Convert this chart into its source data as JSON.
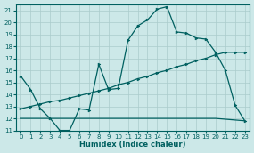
{
  "xlabel": "Humidex (Indice chaleur)",
  "background_color": "#cce8e8",
  "grid_color": "#aacccc",
  "line_color": "#006060",
  "xlim": [
    -0.5,
    23.5
  ],
  "ylim": [
    11,
    21.5
  ],
  "xticks": [
    0,
    1,
    2,
    3,
    4,
    5,
    6,
    7,
    8,
    9,
    10,
    11,
    12,
    13,
    14,
    15,
    16,
    17,
    18,
    19,
    20,
    21,
    22,
    23
  ],
  "yticks": [
    11,
    12,
    13,
    14,
    15,
    16,
    17,
    18,
    19,
    20,
    21
  ],
  "line1_x": [
    0,
    1,
    2,
    3,
    4,
    5,
    6,
    7,
    8,
    9,
    10,
    11,
    12,
    13,
    14,
    15,
    16,
    17,
    18,
    19,
    20,
    21,
    22,
    23
  ],
  "line1_y": [
    15.5,
    14.4,
    12.8,
    12.0,
    11.0,
    11.0,
    12.8,
    12.7,
    16.5,
    14.4,
    14.5,
    18.5,
    19.7,
    20.2,
    21.1,
    21.3,
    19.2,
    19.1,
    18.7,
    18.6,
    17.5,
    16.0,
    13.1,
    11.8
  ],
  "line2_x": [
    0,
    1,
    2,
    3,
    4,
    5,
    6,
    7,
    8,
    9,
    10,
    11,
    12,
    13,
    14,
    15,
    16,
    17,
    18,
    19,
    20,
    21,
    22,
    23
  ],
  "line2_y": [
    12.8,
    13.0,
    13.2,
    13.4,
    13.5,
    13.7,
    13.9,
    14.1,
    14.3,
    14.5,
    14.8,
    15.0,
    15.3,
    15.5,
    15.8,
    16.0,
    16.3,
    16.5,
    16.8,
    17.0,
    17.3,
    17.5,
    17.5,
    17.5
  ],
  "line3_x": [
    0,
    3,
    20,
    23
  ],
  "line3_y": [
    12.0,
    12.0,
    12.0,
    11.8
  ]
}
